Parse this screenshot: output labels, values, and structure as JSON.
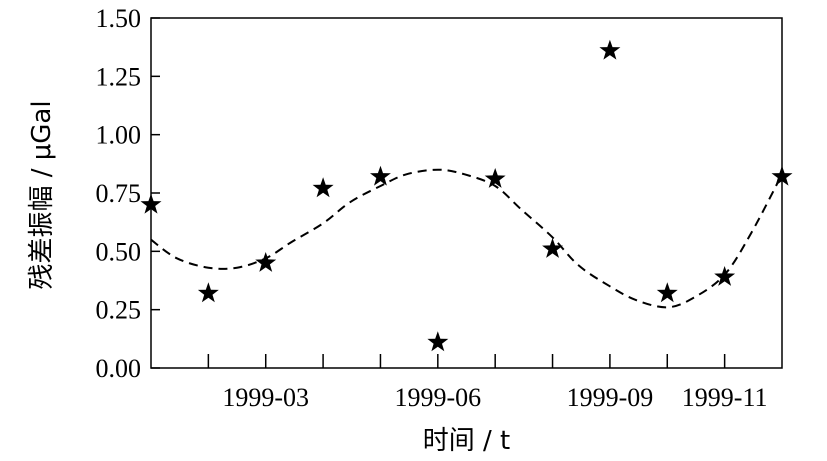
{
  "chart_data": {
    "type": "scatter",
    "xlabel": "时间 / t",
    "ylabel": "残差振幅 / μGal",
    "ylim": [
      0,
      1.5
    ],
    "xlim": [
      "1999-01",
      "1999-12"
    ],
    "yticks": [
      0,
      0.25,
      0.5,
      0.75,
      1.0,
      1.25,
      1.5
    ],
    "ytick_labels": [
      "0.00",
      "0.25",
      "0.50",
      "0.75",
      "1.00",
      "1.25",
      "1.50"
    ],
    "xtick_labels": [
      "1999-03",
      "1999-06",
      "1999-09",
      "1999-11"
    ],
    "x_minor_ticks": [
      "1999-02",
      "1999-04",
      "1999-05",
      "1999-07",
      "1999-08",
      "1999-10"
    ],
    "grid": false,
    "legend": "none",
    "series": [
      {
        "marker": "star",
        "color": "#000000",
        "points": [
          {
            "x": "1999-01",
            "y": 0.7
          },
          {
            "x": "1999-02",
            "y": 0.32
          },
          {
            "x": "1999-03",
            "y": 0.45
          },
          {
            "x": "1999-04",
            "y": 0.77
          },
          {
            "x": "1999-05",
            "y": 0.82
          },
          {
            "x": "1999-06",
            "y": 0.11
          },
          {
            "x": "1999-07",
            "y": 0.81
          },
          {
            "x": "1999-08",
            "y": 0.51
          },
          {
            "x": "1999-09",
            "y": 1.36
          },
          {
            "x": "1999-10",
            "y": 0.32
          },
          {
            "x": "1999-11",
            "y": 0.39
          },
          {
            "x": "1999-12",
            "y": 0.82
          }
        ]
      },
      {
        "style": "dashed",
        "color": "#000000",
        "points": [
          {
            "x": "1999-01",
            "y": 0.55
          },
          {
            "x": "1999-01-15",
            "y": 0.47
          },
          {
            "x": "1999-02",
            "y": 0.43
          },
          {
            "x": "1999-02-15",
            "y": 0.43
          },
          {
            "x": "1999-03",
            "y": 0.47
          },
          {
            "x": "1999-03-15",
            "y": 0.54
          },
          {
            "x": "1999-04",
            "y": 0.62
          },
          {
            "x": "1999-04-15",
            "y": 0.71
          },
          {
            "x": "1999-05",
            "y": 0.78
          },
          {
            "x": "1999-05-15",
            "y": 0.83
          },
          {
            "x": "1999-06",
            "y": 0.85
          },
          {
            "x": "1999-06-15",
            "y": 0.83
          },
          {
            "x": "1999-07",
            "y": 0.78
          },
          {
            "x": "1999-07-15",
            "y": 0.68
          },
          {
            "x": "1999-08",
            "y": 0.56
          },
          {
            "x": "1999-08-15",
            "y": 0.44
          },
          {
            "x": "1999-09",
            "y": 0.35
          },
          {
            "x": "1999-09-15",
            "y": 0.29
          },
          {
            "x": "1999-10",
            "y": 0.26
          },
          {
            "x": "1999-10-15",
            "y": 0.3
          },
          {
            "x": "1999-11",
            "y": 0.4
          },
          {
            "x": "1999-11-15",
            "y": 0.58
          },
          {
            "x": "1999-12",
            "y": 0.83
          }
        ]
      }
    ]
  }
}
